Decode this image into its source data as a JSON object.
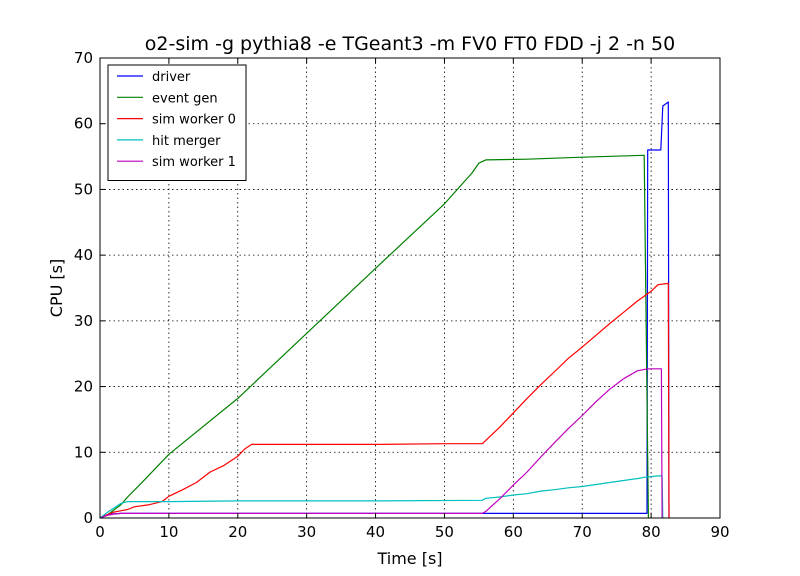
{
  "chart_data": {
    "type": "line",
    "title": "o2-sim -g pythia8 -e TGeant3 -m FV0 FT0 FDD -j 2 -n 50",
    "xlabel": "Time [s]",
    "ylabel": "CPU [s]",
    "xlim": [
      0,
      90
    ],
    "ylim": [
      0,
      70
    ],
    "xticks": [
      0,
      10,
      20,
      30,
      40,
      50,
      60,
      70,
      80,
      90
    ],
    "yticks": [
      0,
      10,
      20,
      30,
      40,
      50,
      60,
      70
    ],
    "grid": true,
    "legend_position": "top-left",
    "series": [
      {
        "name": "driver",
        "color": "#0000ff",
        "points": [
          [
            0,
            0
          ],
          [
            0.5,
            0.3
          ],
          [
            1.5,
            0.6
          ],
          [
            3,
            0.7
          ],
          [
            79.4,
            0.7
          ],
          [
            79.5,
            56
          ],
          [
            81.4,
            56
          ],
          [
            81.7,
            62.7
          ],
          [
            82.5,
            63.3
          ],
          [
            82.6,
            0
          ]
        ]
      },
      {
        "name": "event gen",
        "color": "#008000",
        "points": [
          [
            0,
            0
          ],
          [
            1,
            0.4
          ],
          [
            2,
            1.2
          ],
          [
            3,
            2.0
          ],
          [
            4,
            3.2
          ],
          [
            6,
            5.3
          ],
          [
            10,
            9.7
          ],
          [
            20,
            18.2
          ],
          [
            30,
            28.1
          ],
          [
            40,
            38.0
          ],
          [
            50,
            47.8
          ],
          [
            54,
            52.5
          ],
          [
            55,
            54.0
          ],
          [
            56,
            54.5
          ],
          [
            62,
            54.6
          ],
          [
            70,
            54.9
          ],
          [
            79,
            55.2
          ],
          [
            79.6,
            0
          ]
        ]
      },
      {
        "name": "sim worker 0",
        "color": "#ff0000",
        "points": [
          [
            0,
            0
          ],
          [
            1,
            0.5
          ],
          [
            2,
            0.9
          ],
          [
            3,
            1.1
          ],
          [
            4,
            1.3
          ],
          [
            5,
            1.7
          ],
          [
            7,
            2.0
          ],
          [
            9,
            2.5
          ],
          [
            10,
            3.3
          ],
          [
            12,
            4.3
          ],
          [
            14,
            5.4
          ],
          [
            16,
            7.0
          ],
          [
            18,
            8.0
          ],
          [
            20,
            9.4
          ],
          [
            21,
            10.5
          ],
          [
            22,
            11.2
          ],
          [
            30,
            11.2
          ],
          [
            40,
            11.2
          ],
          [
            50,
            11.3
          ],
          [
            55.5,
            11.3
          ],
          [
            58,
            13.8
          ],
          [
            60,
            16.0
          ],
          [
            62,
            18.2
          ],
          [
            64,
            20.3
          ],
          [
            66,
            22.3
          ],
          [
            68,
            24.3
          ],
          [
            70,
            26.0
          ],
          [
            72,
            27.8
          ],
          [
            74,
            29.6
          ],
          [
            76,
            31.3
          ],
          [
            78,
            33.0
          ],
          [
            80,
            34.5
          ],
          [
            81,
            35.5
          ],
          [
            82.5,
            35.7
          ],
          [
            82.6,
            0
          ]
        ]
      },
      {
        "name": "hit merger",
        "color": "#00bfbf",
        "points": [
          [
            0,
            0
          ],
          [
            1,
            0.8
          ],
          [
            2,
            1.5
          ],
          [
            3,
            2.2
          ],
          [
            4,
            2.5
          ],
          [
            10,
            2.5
          ],
          [
            20,
            2.6
          ],
          [
            30,
            2.6
          ],
          [
            40,
            2.6
          ],
          [
            55.5,
            2.7
          ],
          [
            56,
            3.0
          ],
          [
            58,
            3.2
          ],
          [
            60,
            3.5
          ],
          [
            62,
            3.7
          ],
          [
            64,
            4.1
          ],
          [
            66,
            4.3
          ],
          [
            68,
            4.6
          ],
          [
            70,
            4.8
          ],
          [
            72,
            5.1
          ],
          [
            74,
            5.4
          ],
          [
            76,
            5.7
          ],
          [
            78,
            6.0
          ],
          [
            79,
            6.2
          ],
          [
            81,
            6.4
          ],
          [
            81.6,
            6.4
          ],
          [
            81.7,
            0
          ]
        ]
      },
      {
        "name": "sim worker 1",
        "color": "#bf00bf",
        "points": [
          [
            0,
            0
          ],
          [
            1,
            0.4
          ],
          [
            2,
            0.6
          ],
          [
            3,
            0.7
          ],
          [
            55.5,
            0.7
          ],
          [
            56,
            1.0
          ],
          [
            58,
            2.9
          ],
          [
            60,
            5.0
          ],
          [
            62,
            7.0
          ],
          [
            64,
            9.3
          ],
          [
            66,
            11.5
          ],
          [
            68,
            13.6
          ],
          [
            70,
            15.6
          ],
          [
            72,
            17.7
          ],
          [
            74,
            19.6
          ],
          [
            76,
            21.2
          ],
          [
            78,
            22.4
          ],
          [
            79.5,
            22.7
          ],
          [
            81.5,
            22.7
          ],
          [
            81.6,
            0
          ]
        ]
      }
    ]
  }
}
